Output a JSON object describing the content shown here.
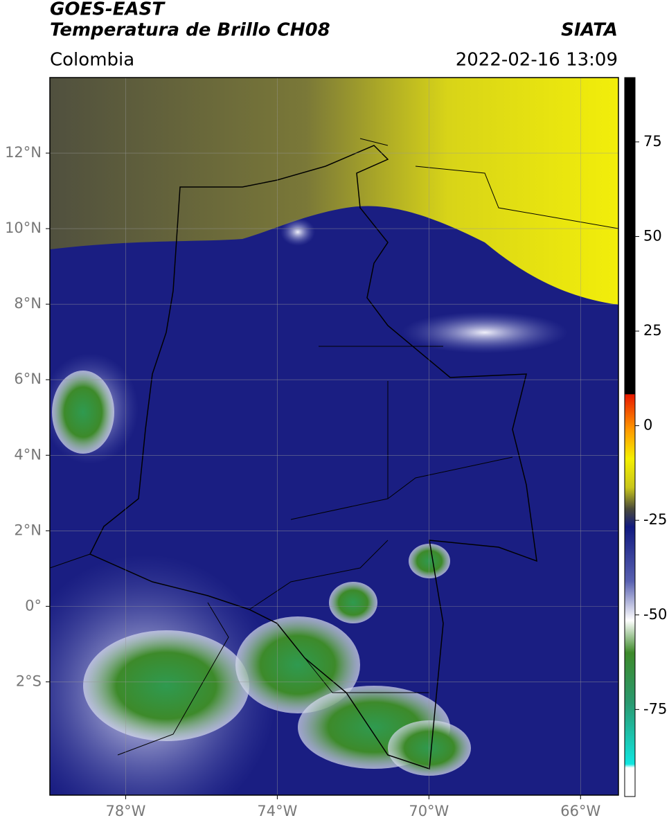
{
  "header": {
    "title": "GOES-EAST",
    "subtitle": "Temperatura de Brillo CH08",
    "region": "Colombia",
    "source": "SIATA",
    "timestamp": "2022-02-16 13:09"
  },
  "map": {
    "lonlim": [
      -80,
      -65
    ],
    "latlim": [
      -5,
      14
    ],
    "lonticks": [
      {
        "value": -78,
        "label": "78°W"
      },
      {
        "value": -74,
        "label": "74°W"
      },
      {
        "value": -70,
        "label": "70°W"
      },
      {
        "value": -66,
        "label": "66°W"
      }
    ],
    "latticks": [
      {
        "value": 12,
        "label": "12°N"
      },
      {
        "value": 10,
        "label": "10°N"
      },
      {
        "value": 8,
        "label": "8°N"
      },
      {
        "value": 6,
        "label": "6°N"
      },
      {
        "value": 4,
        "label": "4°N"
      },
      {
        "value": 2,
        "label": "2°N"
      },
      {
        "value": 0,
        "label": "0°"
      },
      {
        "value": -2,
        "label": "2°S"
      }
    ],
    "grid": true
  },
  "colorbar": {
    "clim": [
      -98,
      92
    ],
    "ticks": [
      75,
      50,
      25,
      0,
      -25,
      -50,
      -75
    ]
  }
}
